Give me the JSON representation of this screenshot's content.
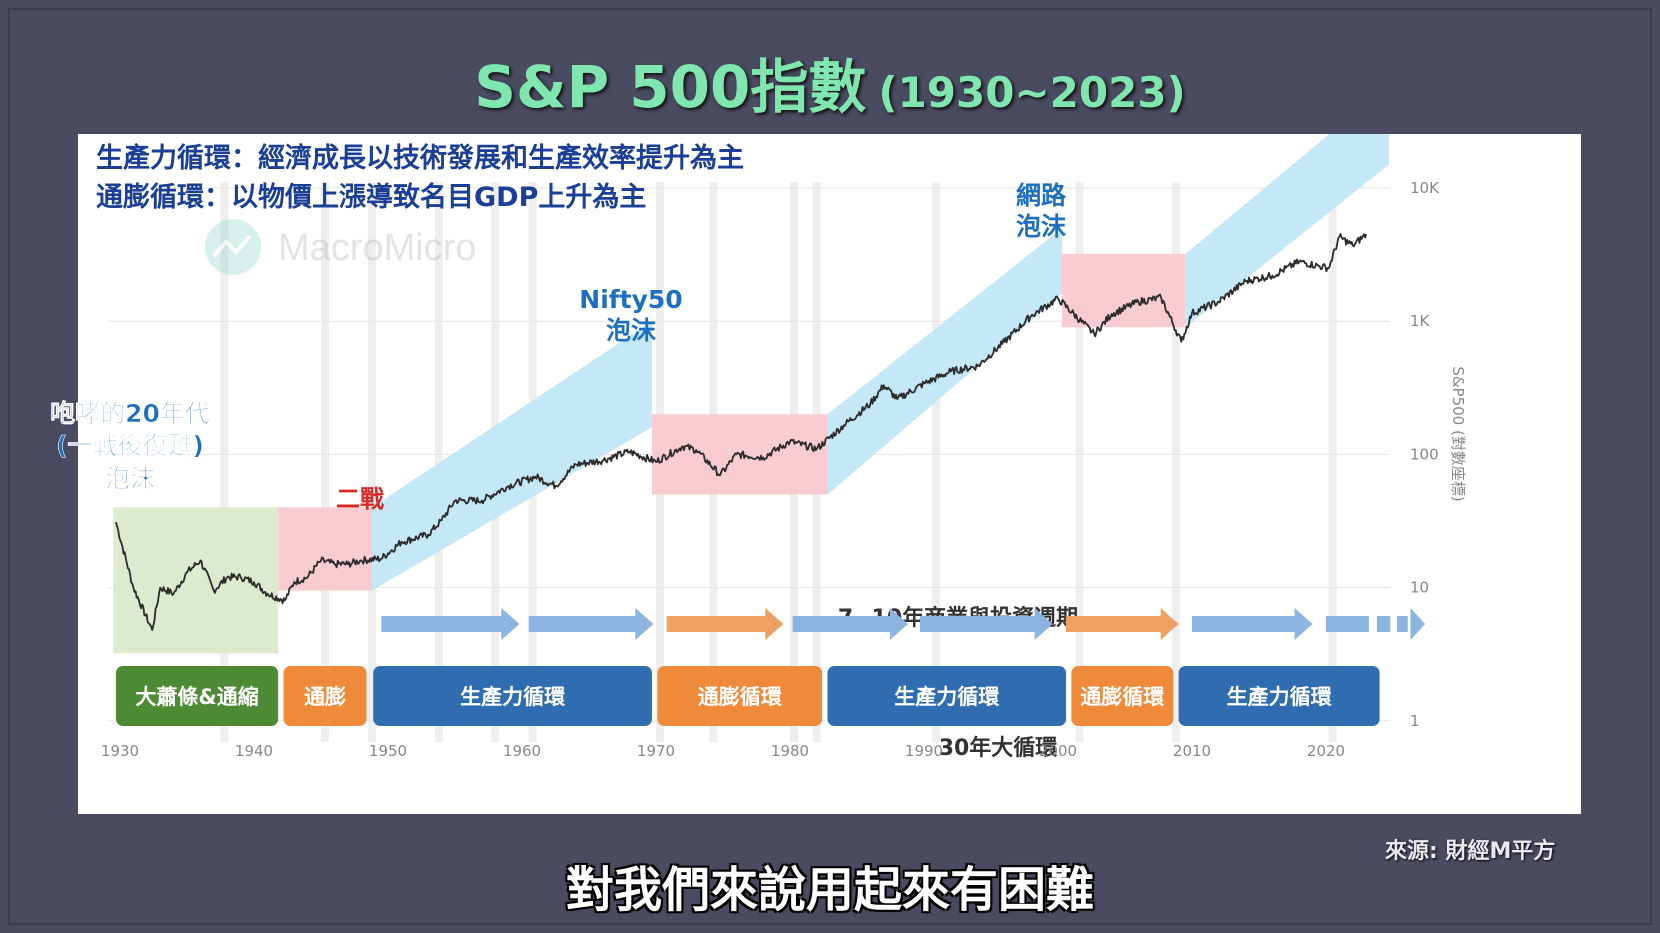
{
  "title": {
    "main": "S&P 500指數",
    "years": "(1930~2023)"
  },
  "source": "來源: 財經M平方",
  "subtitle": "對我們來說用起來有困難",
  "legend": {
    "productivity": "生產力循環：經濟成長以技術發展和生產效率提升為主",
    "inflation": "通膨循環：以物價上漲導致名目GDP上升為主"
  },
  "watermark": "MacroMicro",
  "colors": {
    "line": "#2b2b2b",
    "green_band": "#d8e8c8",
    "pink_band": "#f7c6cc",
    "blue_band": "#bfe6f5",
    "green_box": "#4c8a34",
    "orange_box": "#ee8a3a",
    "blue_box": "#2f6db0",
    "blue_text": "#1f6fc0",
    "red_text": "#d62a2a",
    "arrow_blue": "#8cb4e0",
    "arrow_orange": "#f0a060"
  },
  "annotations": {
    "roaring20s": [
      "咆哮的20年代",
      "(一戰後復甦)",
      "泡沫"
    ],
    "ww2": "二戰",
    "nifty50": [
      "Nifty50",
      "泡沫"
    ],
    "dotcom": [
      "網路",
      "泡沫"
    ],
    "business_cycle": "7~10年商業與投資週期",
    "long_cycle": "30年大循環"
  },
  "phases": [
    {
      "label": "大蕭條&通縮",
      "type": "green"
    },
    {
      "label": "通膨",
      "type": "orange"
    },
    {
      "label": "生產力循環",
      "type": "blue"
    },
    {
      "label": "通膨循環",
      "type": "orange"
    },
    {
      "label": "生產力循環",
      "type": "blue"
    },
    {
      "label": "通膨循環",
      "type": "orange"
    },
    {
      "label": "生產力循環",
      "type": "blue"
    }
  ],
  "chart_data": {
    "type": "line",
    "title": "S&P 500指數 (1930~2023)",
    "ylabel": "S&P500 (對數座標)",
    "y_scale": "log",
    "ylim": [
      1,
      10000
    ],
    "xlim": [
      1928,
      2027
    ],
    "x_ticks": [
      "1930",
      "1940",
      "1950",
      "1960",
      "1970",
      "1980",
      "1990",
      "2000",
      "2010",
      "2020"
    ],
    "y_ticks": [
      "1",
      "10",
      "100",
      "1K",
      "10K"
    ],
    "x": [
      1929.7,
      1931,
      1932.4,
      1933,
      1934,
      1935,
      1936,
      1937,
      1938,
      1939,
      1940,
      1941,
      1942.3,
      1943,
      1944,
      1945,
      1946,
      1947,
      1948,
      1949.5,
      1951,
      1953,
      1954,
      1955,
      1957,
      1959,
      1961,
      1962.5,
      1964,
      1966,
      1968,
      1970,
      1972,
      1973,
      1974.8,
      1976,
      1978,
      1980,
      1982,
      1984,
      1986,
      1987,
      1988,
      1990,
      1992,
      1994,
      1996,
      1998,
      2000,
      2002.7,
      2004,
      2006,
      2007.7,
      2009.2,
      2010,
      2012,
      2014,
      2016,
      2018,
      2020.2,
      2021,
      2022,
      2023
    ],
    "values": [
      31,
      10,
      4.8,
      10,
      9,
      13,
      16,
      9.5,
      12,
      12,
      11,
      9,
      8,
      11,
      12,
      16,
      15,
      15,
      16,
      16.5,
      22,
      25,
      32,
      45,
      45,
      58,
      68,
      58,
      84,
      90,
      105,
      88,
      115,
      108,
      70,
      100,
      95,
      125,
      110,
      165,
      240,
      330,
      260,
      340,
      420,
      460,
      700,
      1100,
      1480,
      800,
      1130,
      1400,
      1500,
      700,
      1150,
      1400,
      2000,
      2200,
      2800,
      2500,
      4300,
      3700,
      4500
    ],
    "regimes": [
      {
        "label": "大蕭條&通縮",
        "start": 1929.5,
        "end": 1941.8,
        "color": "green"
      },
      {
        "label": "二戰 通膨",
        "start": 1941.8,
        "end": 1948.8,
        "color": "pink"
      },
      {
        "label": "生產力循環",
        "start": 1948.8,
        "end": 1969.7,
        "color": "blue"
      },
      {
        "label": "通膨循環",
        "start": 1969.7,
        "end": 1982.8,
        "color": "pink"
      },
      {
        "label": "生產力循環",
        "start": 1982.8,
        "end": 2000.3,
        "color": "blue"
      },
      {
        "label": "通膨循環",
        "start": 2000.3,
        "end": 2009.5,
        "color": "pink"
      },
      {
        "label": "生產力循環",
        "start": 2009.5,
        "end": 2024.7,
        "color": "blue"
      }
    ]
  }
}
